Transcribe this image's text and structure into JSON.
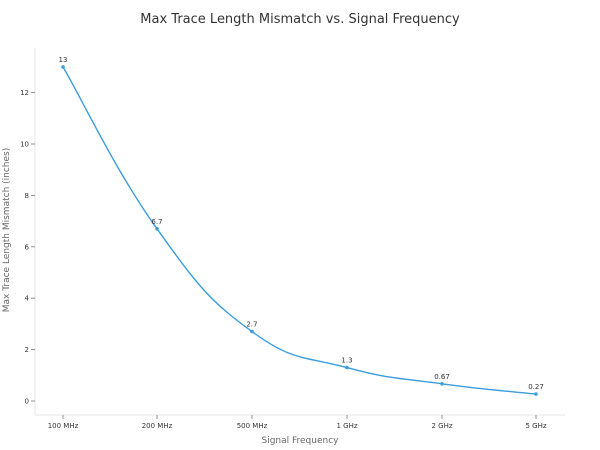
{
  "chart_data": {
    "type": "line",
    "title": "Max Trace Length Mismatch vs. Signal Frequency",
    "xlabel": "Signal Frequency",
    "ylabel": "Max Trace Length Mismatch (inches)",
    "categories": [
      "100 MHz",
      "200 MHz",
      "500 MHz",
      "1 GHz",
      "2 GHz",
      "5 GHz"
    ],
    "values": [
      13,
      6.7,
      2.7,
      1.3,
      0.67,
      0.27
    ],
    "data_labels": [
      "13",
      "6.7",
      "2.7",
      "1.3",
      "0.67",
      "0.27"
    ],
    "ylim": [
      0,
      13.5
    ],
    "yticks": [
      0,
      2,
      4,
      6,
      8,
      10,
      12
    ],
    "grid": false,
    "legend": "none",
    "line_color": "#3b9ddd"
  }
}
